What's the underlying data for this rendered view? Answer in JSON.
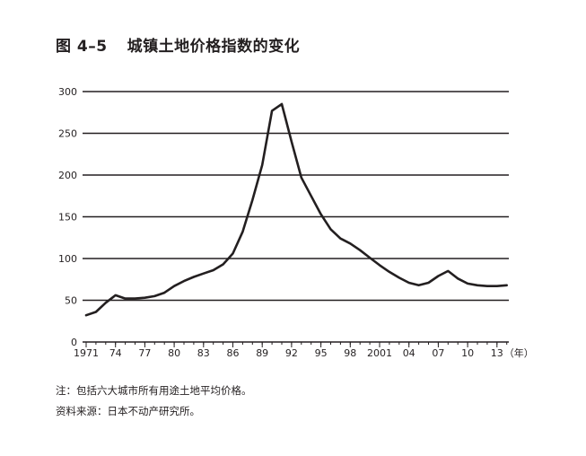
{
  "figure": {
    "label": "图 4–5",
    "title": "城镇土地价格指数的变化"
  },
  "chart_data": {
    "type": "line",
    "title": "城镇土地价格指数的变化",
    "xlabel": "",
    "ylabel": "",
    "x_unit": "（年）",
    "ylim": [
      0,
      300
    ],
    "yticks": [
      0,
      50,
      100,
      150,
      200,
      250,
      300
    ],
    "grid": true,
    "xticks": [
      {
        "year": 1971,
        "label": "1971"
      },
      {
        "year": 1974,
        "label": "74"
      },
      {
        "year": 1977,
        "label": "77"
      },
      {
        "year": 1980,
        "label": "80"
      },
      {
        "year": 1983,
        "label": "83"
      },
      {
        "year": 1986,
        "label": "86"
      },
      {
        "year": 1989,
        "label": "89"
      },
      {
        "year": 1992,
        "label": "92"
      },
      {
        "year": 1995,
        "label": "95"
      },
      {
        "year": 1998,
        "label": "98"
      },
      {
        "year": 2001,
        "label": "2001"
      },
      {
        "year": 2004,
        "label": "04"
      },
      {
        "year": 2007,
        "label": "07"
      },
      {
        "year": 2010,
        "label": "10"
      },
      {
        "year": 2013,
        "label": "13"
      }
    ],
    "x": [
      1971,
      1972,
      1973,
      1974,
      1975,
      1976,
      1977,
      1978,
      1979,
      1980,
      1981,
      1982,
      1983,
      1984,
      1985,
      1986,
      1987,
      1988,
      1989,
      1990,
      1991,
      1992,
      1993,
      1994,
      1995,
      1996,
      1997,
      1998,
      1999,
      2000,
      2001,
      2002,
      2003,
      2004,
      2005,
      2006,
      2007,
      2008,
      2009,
      2010,
      2011,
      2012,
      2013,
      2014
    ],
    "values": [
      32,
      36,
      47,
      56,
      52,
      52,
      53,
      55,
      59,
      67,
      73,
      78,
      82,
      86,
      93,
      106,
      132,
      170,
      212,
      277,
      285,
      240,
      197,
      175,
      153,
      135,
      124,
      118,
      110,
      101,
      92,
      84,
      77,
      71,
      68,
      71,
      79,
      85,
      76,
      70,
      68,
      67,
      67,
      68
    ]
  },
  "notes": {
    "line1": "注：包括六大城市所有用途土地平均价格。",
    "line2": "资料来源：日本不动产研究所。"
  }
}
